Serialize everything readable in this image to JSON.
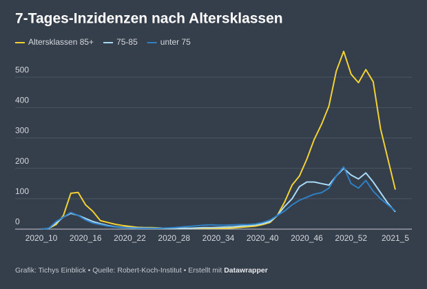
{
  "chart_data": {
    "type": "line",
    "title": "7-Tages-Inzidenzen nach Altersklassen",
    "categories": [
      "2020_10",
      null,
      null,
      null,
      null,
      null,
      "2020_16",
      null,
      null,
      null,
      null,
      null,
      "2020_22",
      null,
      null,
      null,
      null,
      null,
      "2020_28",
      null,
      null,
      null,
      null,
      null,
      "2020_34",
      null,
      null,
      null,
      null,
      null,
      "2020_40",
      null,
      null,
      null,
      null,
      null,
      "2020_46",
      null,
      null,
      null,
      null,
      null,
      "2020_52",
      null,
      null,
      null,
      null,
      null,
      "2021_5"
    ],
    "series": [
      {
        "name": "Altersklassen 85+",
        "color": "#f4d233",
        "values": [
          0,
          3,
          15,
          45,
          118,
          121,
          80,
          58,
          28,
          22,
          16,
          12,
          9,
          6,
          5,
          5,
          4,
          3,
          3,
          3,
          3,
          3,
          3,
          3,
          3,
          3,
          4,
          6,
          8,
          10,
          15,
          22,
          45,
          90,
          145,
          175,
          230,
          295,
          345,
          405,
          520,
          585,
          510,
          482,
          525,
          485,
          330,
          230,
          130
        ]
      },
      {
        "name": "75-85",
        "color": "#a9dbf7",
        "values": [
          0,
          2,
          20,
          40,
          52,
          45,
          35,
          25,
          18,
          12,
          8,
          6,
          5,
          4,
          4,
          3,
          3,
          3,
          3,
          3,
          3,
          4,
          5,
          5,
          6,
          7,
          8,
          10,
          12,
          14,
          18,
          25,
          45,
          75,
          100,
          140,
          155,
          155,
          150,
          145,
          175,
          200,
          178,
          165,
          185,
          155,
          120,
          85,
          57
        ]
      },
      {
        "name": "unter 75",
        "color": "#2f80c4",
        "values": [
          0,
          3,
          25,
          40,
          55,
          45,
          30,
          20,
          15,
          10,
          7,
          5,
          4,
          3,
          3,
          3,
          3,
          4,
          5,
          7,
          9,
          11,
          13,
          14,
          13,
          13,
          14,
          15,
          15,
          17,
          22,
          30,
          45,
          60,
          80,
          95,
          105,
          115,
          120,
          135,
          175,
          205,
          150,
          135,
          160,
          125,
          100,
          80,
          60
        ]
      }
    ],
    "ylim": [
      0,
      600
    ],
    "yticks": [
      0,
      100,
      200,
      300,
      400,
      500
    ],
    "grid": true,
    "source": {
      "text": "Grafik: Tichys Einblick • Quelle: Robert-Koch-Institut • Erstellt mit",
      "tool": "Datawrapper"
    }
  }
}
